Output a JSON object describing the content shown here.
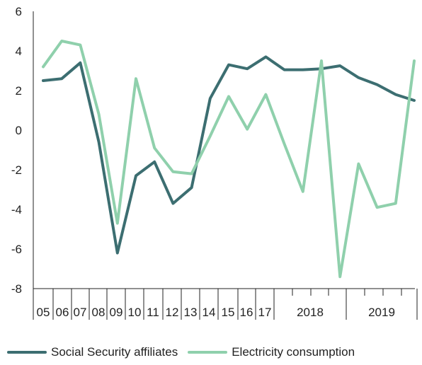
{
  "colors": {
    "social_security": "#3c6e71",
    "electricity": "#8fd0ac",
    "axis": "#222222"
  },
  "chart_data": {
    "type": "line",
    "ylim": [
      -8,
      6
    ],
    "yticks": [
      -8,
      -6,
      -4,
      -2,
      0,
      2,
      4,
      6
    ],
    "x_labels": [
      "05",
      "06",
      "07",
      "08",
      "09",
      "10",
      "11",
      "12",
      "13",
      "14",
      "15",
      "16",
      "17",
      "2018",
      "2019"
    ],
    "series": [
      {
        "name": "Social Security affiliates",
        "color": "#3c6e71",
        "values": [
          2.5,
          2.6,
          3.4,
          -0.6,
          -6.2,
          -2.3,
          -1.6,
          -3.7,
          -2.9,
          1.6,
          3.3,
          3.1,
          3.7,
          3.05,
          3.05,
          3.1,
          3.25,
          2.65,
          2.3,
          1.8,
          1.5
        ]
      },
      {
        "name": "Electricity consumption",
        "color": "#8fd0ac",
        "values": [
          3.2,
          4.5,
          4.3,
          0.8,
          -4.7,
          2.6,
          -0.9,
          -2.1,
          -2.2,
          -0.3,
          1.7,
          0.05,
          1.8,
          -0.7,
          -3.1,
          3.5,
          -7.4,
          -1.7,
          -3.9,
          -3.7,
          3.5
        ]
      }
    ]
  }
}
